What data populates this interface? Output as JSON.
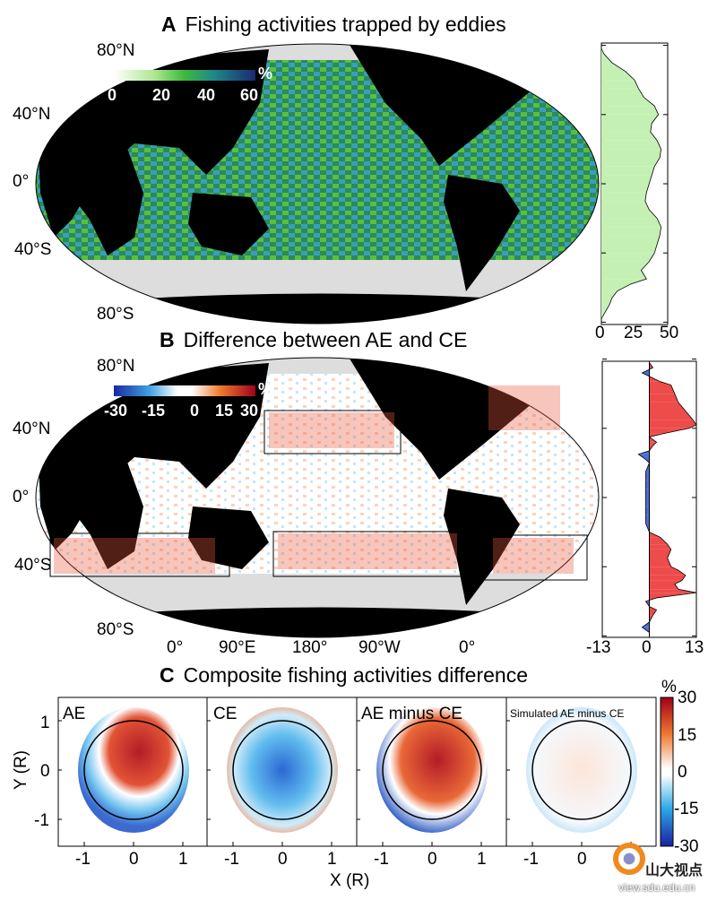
{
  "chart_data": [
    {
      "type": "map",
      "panel": "A",
      "title": "Fishing activities trapped by eddies",
      "lat_labels": [
        "80°N",
        "40°N",
        "0°",
        "40°S",
        "80°S"
      ],
      "colorbar": {
        "ticks": [
          "0",
          "20",
          "40",
          "60"
        ],
        "unit": "%",
        "colors": [
          "#ffffff",
          "#9be07a",
          "#3cb83c",
          "#1f8a8a",
          "#1f4e9a",
          "#1a2a6e"
        ]
      }
    },
    {
      "type": "area",
      "panel": "A-profile",
      "xlim": [
        0,
        50
      ],
      "xticks": [
        "0",
        "25",
        "50"
      ],
      "lat": [
        78,
        75,
        70,
        65,
        60,
        55,
        50,
        45,
        40,
        35,
        30,
        25,
        20,
        15,
        10,
        5,
        0,
        -5,
        -10,
        -15,
        -20,
        -25,
        -30,
        -35,
        -40,
        -45,
        -50,
        -55,
        -58,
        -62,
        -66,
        -70,
        -74,
        -78
      ],
      "values": [
        0,
        2,
        8,
        18,
        25,
        28,
        32,
        40,
        43,
        38,
        37,
        42,
        45,
        44,
        40,
        38,
        36,
        34,
        33,
        36,
        42,
        45,
        44,
        42,
        40,
        36,
        30,
        34,
        22,
        12,
        8,
        6,
        3,
        0
      ],
      "color": "#c4f0b4"
    },
    {
      "type": "map",
      "panel": "B",
      "title": "Difference between AE and CE",
      "lat_labels": [
        "80°N",
        "40°N",
        "0°",
        "40°S",
        "80°S"
      ],
      "lon_labels": [
        "0°",
        "90°E",
        "180°",
        "90°W",
        "0°"
      ],
      "colorbar": {
        "ticks": [
          "-30",
          "-15",
          "0",
          "15",
          "30"
        ],
        "unit": "%"
      }
    },
    {
      "type": "area",
      "panel": "B-profile",
      "xlim": [
        -13,
        13
      ],
      "xticks": [
        "-13",
        "0",
        "13"
      ],
      "lat": [
        78,
        75,
        72,
        70,
        67,
        65,
        60,
        55,
        50,
        45,
        42,
        40,
        37,
        35,
        32,
        30,
        27,
        25,
        22,
        20,
        15,
        10,
        5,
        0,
        -5,
        -10,
        -15,
        -20,
        -23,
        -27,
        -30,
        -35,
        -40,
        -42,
        -45,
        -48,
        -50,
        -53,
        -55,
        -58,
        -60,
        -63,
        -65,
        -68,
        -72,
        -75,
        -78
      ],
      "values": [
        0,
        1,
        -2,
        0,
        3,
        6,
        7,
        8,
        10,
        12,
        13,
        11,
        4,
        0,
        2,
        1,
        0,
        -3,
        -1,
        0,
        -1,
        -1,
        -1,
        -1,
        -1,
        -1,
        -1,
        0,
        3,
        5,
        6,
        5,
        6,
        8,
        10,
        9,
        7,
        8,
        13,
        2,
        -1,
        0,
        2,
        1,
        0,
        -2,
        0
      ],
      "pos_color": "#ee4b4b",
      "neg_color": "#4a6fd6"
    },
    {
      "type": "heatmap",
      "panel": "C",
      "title": "Composite fishing activities difference",
      "subpanels": [
        "AE",
        "CE",
        "AE minus CE",
        "Simulated AE minus CE"
      ],
      "xlabel": "X (R)",
      "ylabel": "Y (R)",
      "xticks": [
        "-1",
        "0",
        "1"
      ],
      "yticks": [
        "1",
        "0",
        "-1"
      ],
      "colorbar": {
        "ticks": [
          "30",
          "15",
          "0",
          "-15",
          "-30"
        ],
        "unit": "%"
      }
    }
  ],
  "labels": {
    "A": "A",
    "B": "B",
    "C": "C"
  },
  "watermark": {
    "name": "山大视点",
    "url": "view.sdu.edu.cn"
  }
}
